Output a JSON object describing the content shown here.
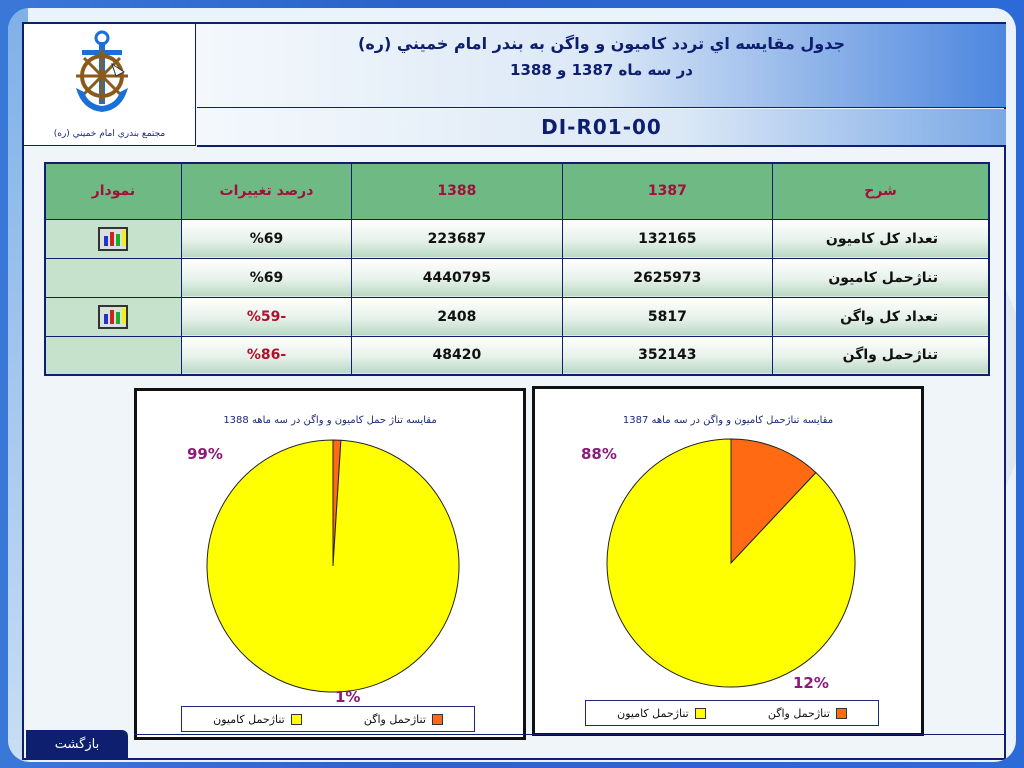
{
  "header": {
    "org_caption": "مجتمع بندري امام خميني (ره)",
    "title_line1": "جدول مقايسه اي تردد كاميون و واگن به بندر امام خميني (ره)",
    "title_line2": "در سه ماه 1387 و 1388",
    "doc_code": "DI-R01-00"
  },
  "table": {
    "headers": [
      "شرح",
      "1387",
      "1388",
      "درصد تغييرات",
      "نمودار"
    ],
    "rows": [
      {
        "label": "تعداد كل كاميون",
        "v1387": "132165",
        "v1388": "223687",
        "change": "%69",
        "has_chart": true
      },
      {
        "label": "تناژحمل كاميون",
        "v1387": "2625973",
        "v1388": "4440795",
        "change": "%69",
        "has_chart": false
      },
      {
        "label": "تعداد كل واگن",
        "v1387": "5817",
        "v1388": "2408",
        "change": "-%59",
        "has_chart": true
      },
      {
        "label": "تناژحمل واگن",
        "v1387": "352143",
        "v1388": "48420",
        "change": "-%86",
        "has_chart": false
      }
    ]
  },
  "chart_data": [
    {
      "type": "pie",
      "title": "مقايسه تناژ حمل كاميون و واگن در سه ماهه 1388",
      "categories": [
        "تناژحمل كاميون",
        "تناژحمل واگن"
      ],
      "values": [
        99,
        1
      ],
      "labels": [
        "99%",
        "1%"
      ],
      "colors": [
        "#ffff00",
        "#ff6a13"
      ]
    },
    {
      "type": "pie",
      "title": "مقايسه تناژحمل كاميون و واگن در سه ماهه 1387",
      "categories": [
        "تناژحمل كاميون",
        "تناژحمل واگن"
      ],
      "values": [
        88,
        12
      ],
      "labels": [
        "88%",
        "12%"
      ],
      "colors": [
        "#ffff00",
        "#ff6a13"
      ]
    }
  ],
  "legend": {
    "truck": "تناژحمل كاميون",
    "wagon": "تناژحمل واگن"
  },
  "nav": {
    "back_label": "بازگشت"
  },
  "colors": {
    "navy": "#0d1f6e",
    "header_green": "#6fba84",
    "pct_color": "#8b1a7a",
    "negative": "#b0102a"
  }
}
